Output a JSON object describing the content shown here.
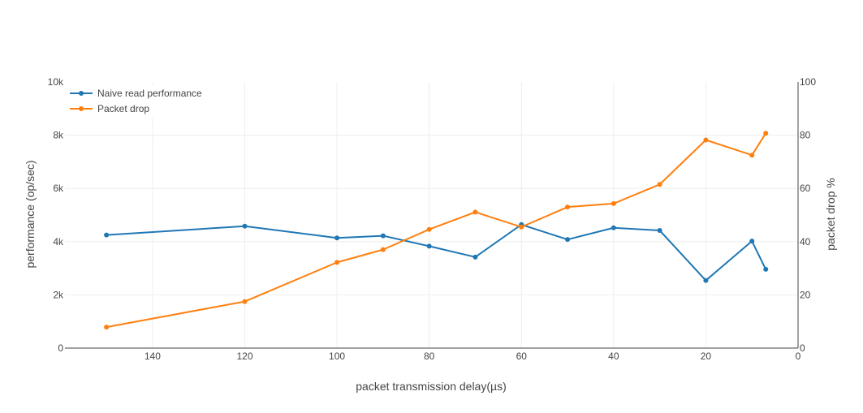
{
  "chart_data": {
    "type": "line",
    "x": [
      150,
      120,
      100,
      90,
      80,
      70,
      60,
      50,
      40,
      30,
      20,
      10,
      7
    ],
    "xlabel": "packet transmission delay(µs)",
    "xlim": [
      0,
      159
    ],
    "x_reversed": true,
    "x_ticks": [
      "140",
      "120",
      "100",
      "80",
      "60",
      "40",
      "20",
      "0"
    ],
    "ylabel": "performance (op/sec)",
    "ylim": [
      0,
      10000
    ],
    "y_ticks": [
      "0",
      "2k",
      "4k",
      "6k",
      "8k",
      "10k"
    ],
    "y2label": "packet drop %",
    "y2lim": [
      0,
      100
    ],
    "y2_ticks": [
      "0",
      "20",
      "40",
      "60",
      "80",
      "100"
    ],
    "grid": true,
    "legend_position": "top-left",
    "series": [
      {
        "name": "Naive read performance",
        "axis": "left",
        "color": "#1f77b4",
        "values": [
          4250,
          4580,
          4140,
          4220,
          3830,
          3420,
          4640,
          4080,
          4520,
          4420,
          2540,
          4020,
          2960
        ]
      },
      {
        "name": "Packet drop",
        "axis": "right",
        "color": "#ff7f0e",
        "values": [
          7.9,
          17.5,
          32.2,
          37.0,
          44.6,
          51.1,
          45.5,
          53.0,
          54.3,
          61.5,
          78.2,
          72.5,
          80.7
        ]
      }
    ]
  }
}
